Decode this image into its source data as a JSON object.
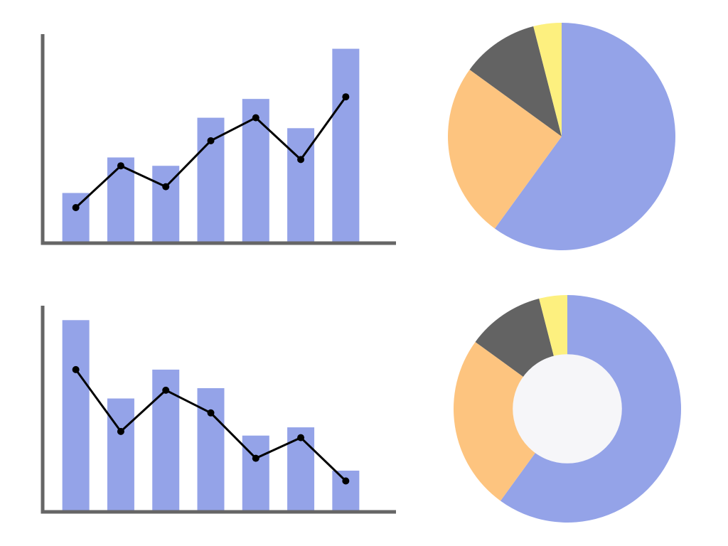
{
  "chart_data": [
    {
      "type": "bar-line",
      "categories": [
        null,
        null,
        null,
        null,
        null,
        null,
        null
      ],
      "series": [
        {
          "type": "bar",
          "color": "#94a3e8",
          "values": [
            24,
            41,
            37,
            60,
            69,
            55,
            93
          ]
        },
        {
          "type": "line",
          "color": "#000000",
          "values": [
            17,
            37,
            27,
            49,
            60,
            40,
            70
          ]
        }
      ],
      "ylim": [
        0,
        100
      ]
    },
    {
      "type": "pie",
      "categories": [
        null,
        null,
        null,
        null
      ],
      "values": [
        60,
        25,
        11,
        4
      ],
      "colors": [
        "#94a3e8",
        "#fdc47f",
        "#636363",
        "#fdf07f"
      ]
    },
    {
      "type": "bar-line",
      "categories": [
        null,
        null,
        null,
        null,
        null,
        null,
        null
      ],
      "series": [
        {
          "type": "bar",
          "color": "#94a3e8",
          "values": [
            93,
            55,
            69,
            60,
            37,
            41,
            20
          ]
        },
        {
          "type": "line",
          "color": "#000000",
          "values": [
            69,
            39,
            59,
            48,
            26,
            36,
            15
          ]
        }
      ],
      "ylim": [
        0,
        100
      ]
    },
    {
      "type": "donut",
      "categories": [
        null,
        null,
        null,
        null
      ],
      "values": [
        60,
        25,
        11,
        4
      ],
      "colors": [
        "#94a3e8",
        "#fdc47f",
        "#636363",
        "#fdf07f"
      ]
    }
  ]
}
